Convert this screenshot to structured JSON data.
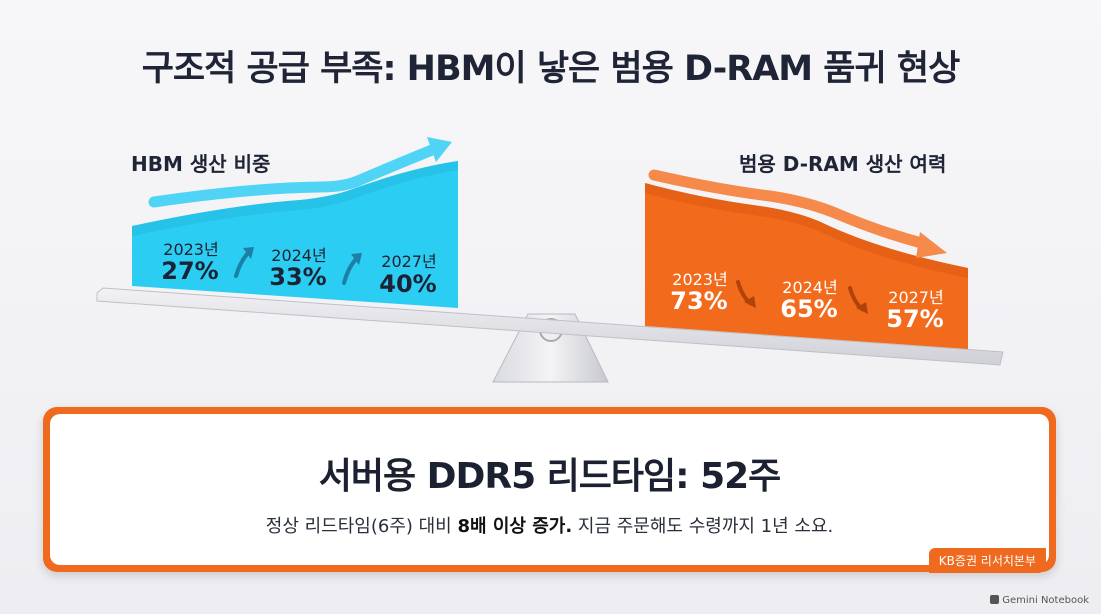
{
  "title": "구조적 공급 부족: HBM이 낳은 범용 D-RAM 품귀 현상",
  "left_panel": {
    "label": "HBM 생산 비중",
    "color": "#2ccdf2",
    "points": [
      {
        "year": "2023년",
        "value": "27%"
      },
      {
        "year": "2024년",
        "value": "33%"
      },
      {
        "year": "2027년",
        "value": "40%"
      }
    ]
  },
  "right_panel": {
    "label": "범용 D-RAM 생산 여력",
    "color": "#f26a1b",
    "points": [
      {
        "year": "2023년",
        "value": "73%"
      },
      {
        "year": "2024년",
        "value": "65%"
      },
      {
        "year": "2027년",
        "value": "57%"
      }
    ]
  },
  "callout": {
    "headline": "서버용 DDR5 리드타임: 52주",
    "sub_before": "정상 리드타임(6주) 대비 ",
    "sub_bold": "8배 이상 증가.",
    "sub_after": " 지금 주문해도 수령까지 1년 소요.",
    "source": "KB증권 리서치본부"
  },
  "footer": "Gemini Notebook"
}
